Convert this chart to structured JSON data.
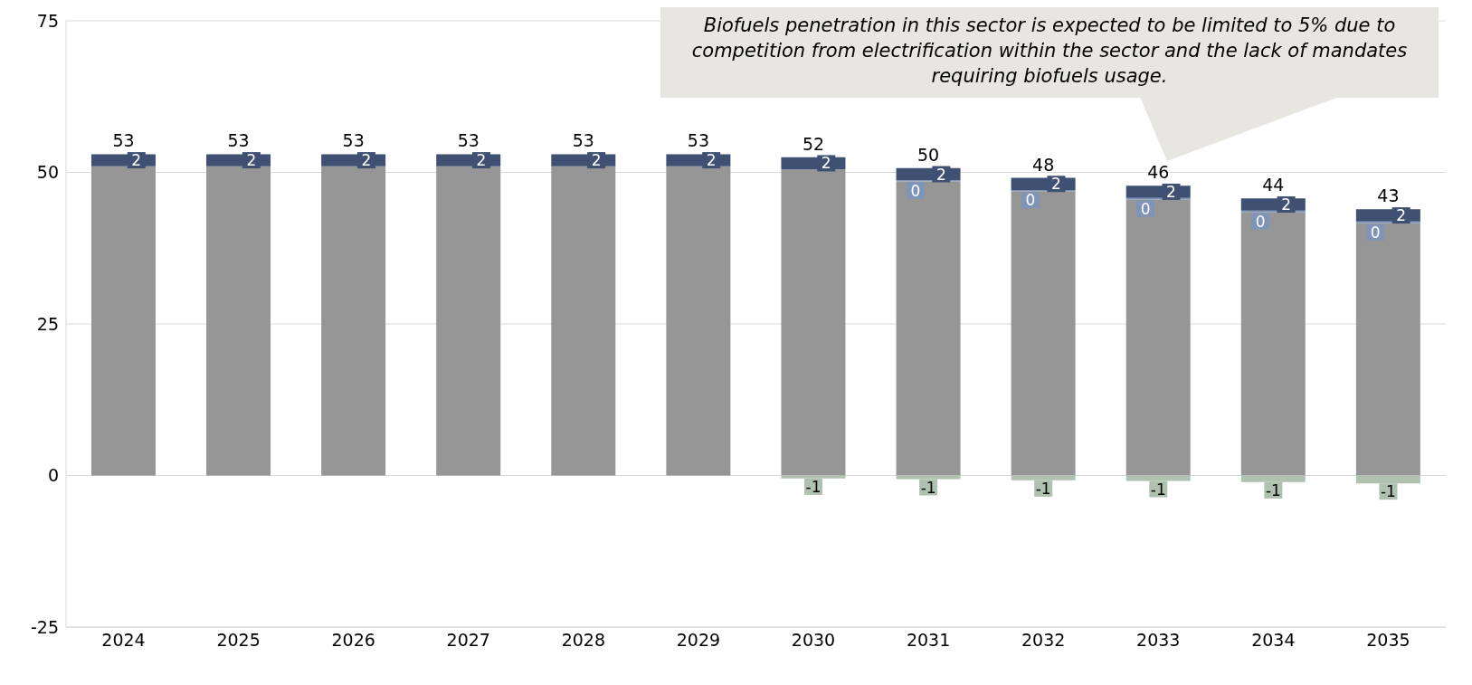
{
  "chart_data": {
    "type": "bar",
    "stacked": true,
    "categories": [
      "2024",
      "2025",
      "2026",
      "2027",
      "2028",
      "2029",
      "2030",
      "2031",
      "2032",
      "2033",
      "2034",
      "2035"
    ],
    "series": [
      {
        "color": "#969696",
        "values": [
          51,
          51,
          51,
          51,
          51,
          51,
          50.5,
          48.5,
          46.9,
          45.5,
          43.4,
          41.6
        ]
      },
      {
        "color": "#8094b8",
        "values": [
          null,
          null,
          null,
          null,
          null,
          null,
          null,
          0.2,
          0.2,
          0.3,
          0.3,
          0.3
        ],
        "value_labels": [
          null,
          null,
          null,
          null,
          null,
          null,
          null,
          "0",
          "0",
          "0",
          "0",
          "0"
        ]
      },
      {
        "color": "#3f5073",
        "values": [
          2,
          2,
          2,
          2,
          2,
          2,
          2,
          2,
          2,
          2,
          2,
          2
        ],
        "value_labels": [
          "2",
          "2",
          "2",
          "2",
          "2",
          "2",
          "2",
          "2",
          "2",
          "2",
          "2",
          "2"
        ]
      },
      {
        "color": "#afc1af",
        "values": [
          null,
          null,
          null,
          null,
          null,
          null,
          -0.5,
          -0.6,
          -0.8,
          -0.9,
          -1.1,
          -1.3
        ],
        "value_labels": [
          null,
          null,
          null,
          null,
          null,
          null,
          "-1",
          "-1",
          "-1",
          "-1",
          "-1",
          "-1"
        ]
      }
    ],
    "totals": [
      "53",
      "53",
      "53",
      "53",
      "53",
      "53",
      "52",
      "50",
      "48",
      "46",
      "44",
      "43"
    ],
    "ylim": [
      -25,
      75
    ],
    "yticks": [
      -25,
      0,
      25,
      50,
      75
    ],
    "grid": "y",
    "legend": false,
    "annotations": [
      "Biofuels penetration in this sector is expected to be limited to 5% due to competition from electrification within the sector and the lack of mandates requiring biofuels usage."
    ]
  }
}
